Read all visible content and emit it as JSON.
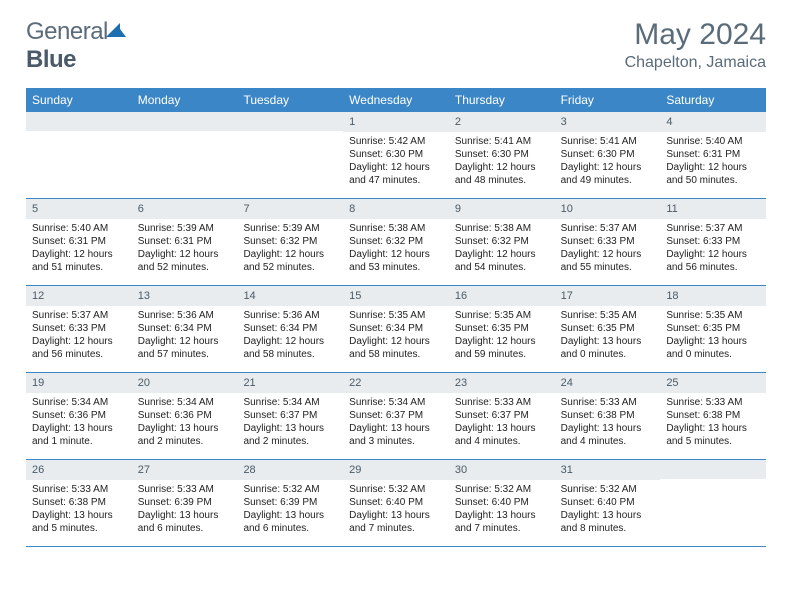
{
  "brand": {
    "part1": "General",
    "part2": "Blue"
  },
  "title": "May 2024",
  "location": "Chapelton, Jamaica",
  "colors": {
    "header_bg": "#3b86c7",
    "header_text": "#ffffff",
    "daynum_bg": "#e8ecef",
    "text": "#222222",
    "muted": "#5a6b7a",
    "logo_blue": "#1e6fb0"
  },
  "daynames": [
    "Sunday",
    "Monday",
    "Tuesday",
    "Wednesday",
    "Thursday",
    "Friday",
    "Saturday"
  ],
  "weeks": [
    [
      {
        "n": "",
        "sr": "",
        "ss": "",
        "dl": ""
      },
      {
        "n": "",
        "sr": "",
        "ss": "",
        "dl": ""
      },
      {
        "n": "",
        "sr": "",
        "ss": "",
        "dl": ""
      },
      {
        "n": "1",
        "sr": "Sunrise: 5:42 AM",
        "ss": "Sunset: 6:30 PM",
        "dl": "Daylight: 12 hours and 47 minutes."
      },
      {
        "n": "2",
        "sr": "Sunrise: 5:41 AM",
        "ss": "Sunset: 6:30 PM",
        "dl": "Daylight: 12 hours and 48 minutes."
      },
      {
        "n": "3",
        "sr": "Sunrise: 5:41 AM",
        "ss": "Sunset: 6:30 PM",
        "dl": "Daylight: 12 hours and 49 minutes."
      },
      {
        "n": "4",
        "sr": "Sunrise: 5:40 AM",
        "ss": "Sunset: 6:31 PM",
        "dl": "Daylight: 12 hours and 50 minutes."
      }
    ],
    [
      {
        "n": "5",
        "sr": "Sunrise: 5:40 AM",
        "ss": "Sunset: 6:31 PM",
        "dl": "Daylight: 12 hours and 51 minutes."
      },
      {
        "n": "6",
        "sr": "Sunrise: 5:39 AM",
        "ss": "Sunset: 6:31 PM",
        "dl": "Daylight: 12 hours and 52 minutes."
      },
      {
        "n": "7",
        "sr": "Sunrise: 5:39 AM",
        "ss": "Sunset: 6:32 PM",
        "dl": "Daylight: 12 hours and 52 minutes."
      },
      {
        "n": "8",
        "sr": "Sunrise: 5:38 AM",
        "ss": "Sunset: 6:32 PM",
        "dl": "Daylight: 12 hours and 53 minutes."
      },
      {
        "n": "9",
        "sr": "Sunrise: 5:38 AM",
        "ss": "Sunset: 6:32 PM",
        "dl": "Daylight: 12 hours and 54 minutes."
      },
      {
        "n": "10",
        "sr": "Sunrise: 5:37 AM",
        "ss": "Sunset: 6:33 PM",
        "dl": "Daylight: 12 hours and 55 minutes."
      },
      {
        "n": "11",
        "sr": "Sunrise: 5:37 AM",
        "ss": "Sunset: 6:33 PM",
        "dl": "Daylight: 12 hours and 56 minutes."
      }
    ],
    [
      {
        "n": "12",
        "sr": "Sunrise: 5:37 AM",
        "ss": "Sunset: 6:33 PM",
        "dl": "Daylight: 12 hours and 56 minutes."
      },
      {
        "n": "13",
        "sr": "Sunrise: 5:36 AM",
        "ss": "Sunset: 6:34 PM",
        "dl": "Daylight: 12 hours and 57 minutes."
      },
      {
        "n": "14",
        "sr": "Sunrise: 5:36 AM",
        "ss": "Sunset: 6:34 PM",
        "dl": "Daylight: 12 hours and 58 minutes."
      },
      {
        "n": "15",
        "sr": "Sunrise: 5:35 AM",
        "ss": "Sunset: 6:34 PM",
        "dl": "Daylight: 12 hours and 58 minutes."
      },
      {
        "n": "16",
        "sr": "Sunrise: 5:35 AM",
        "ss": "Sunset: 6:35 PM",
        "dl": "Daylight: 12 hours and 59 minutes."
      },
      {
        "n": "17",
        "sr": "Sunrise: 5:35 AM",
        "ss": "Sunset: 6:35 PM",
        "dl": "Daylight: 13 hours and 0 minutes."
      },
      {
        "n": "18",
        "sr": "Sunrise: 5:35 AM",
        "ss": "Sunset: 6:35 PM",
        "dl": "Daylight: 13 hours and 0 minutes."
      }
    ],
    [
      {
        "n": "19",
        "sr": "Sunrise: 5:34 AM",
        "ss": "Sunset: 6:36 PM",
        "dl": "Daylight: 13 hours and 1 minute."
      },
      {
        "n": "20",
        "sr": "Sunrise: 5:34 AM",
        "ss": "Sunset: 6:36 PM",
        "dl": "Daylight: 13 hours and 2 minutes."
      },
      {
        "n": "21",
        "sr": "Sunrise: 5:34 AM",
        "ss": "Sunset: 6:37 PM",
        "dl": "Daylight: 13 hours and 2 minutes."
      },
      {
        "n": "22",
        "sr": "Sunrise: 5:34 AM",
        "ss": "Sunset: 6:37 PM",
        "dl": "Daylight: 13 hours and 3 minutes."
      },
      {
        "n": "23",
        "sr": "Sunrise: 5:33 AM",
        "ss": "Sunset: 6:37 PM",
        "dl": "Daylight: 13 hours and 4 minutes."
      },
      {
        "n": "24",
        "sr": "Sunrise: 5:33 AM",
        "ss": "Sunset: 6:38 PM",
        "dl": "Daylight: 13 hours and 4 minutes."
      },
      {
        "n": "25",
        "sr": "Sunrise: 5:33 AM",
        "ss": "Sunset: 6:38 PM",
        "dl": "Daylight: 13 hours and 5 minutes."
      }
    ],
    [
      {
        "n": "26",
        "sr": "Sunrise: 5:33 AM",
        "ss": "Sunset: 6:38 PM",
        "dl": "Daylight: 13 hours and 5 minutes."
      },
      {
        "n": "27",
        "sr": "Sunrise: 5:33 AM",
        "ss": "Sunset: 6:39 PM",
        "dl": "Daylight: 13 hours and 6 minutes."
      },
      {
        "n": "28",
        "sr": "Sunrise: 5:32 AM",
        "ss": "Sunset: 6:39 PM",
        "dl": "Daylight: 13 hours and 6 minutes."
      },
      {
        "n": "29",
        "sr": "Sunrise: 5:32 AM",
        "ss": "Sunset: 6:40 PM",
        "dl": "Daylight: 13 hours and 7 minutes."
      },
      {
        "n": "30",
        "sr": "Sunrise: 5:32 AM",
        "ss": "Sunset: 6:40 PM",
        "dl": "Daylight: 13 hours and 7 minutes."
      },
      {
        "n": "31",
        "sr": "Sunrise: 5:32 AM",
        "ss": "Sunset: 6:40 PM",
        "dl": "Daylight: 13 hours and 8 minutes."
      },
      {
        "n": "",
        "sr": "",
        "ss": "",
        "dl": ""
      }
    ]
  ]
}
